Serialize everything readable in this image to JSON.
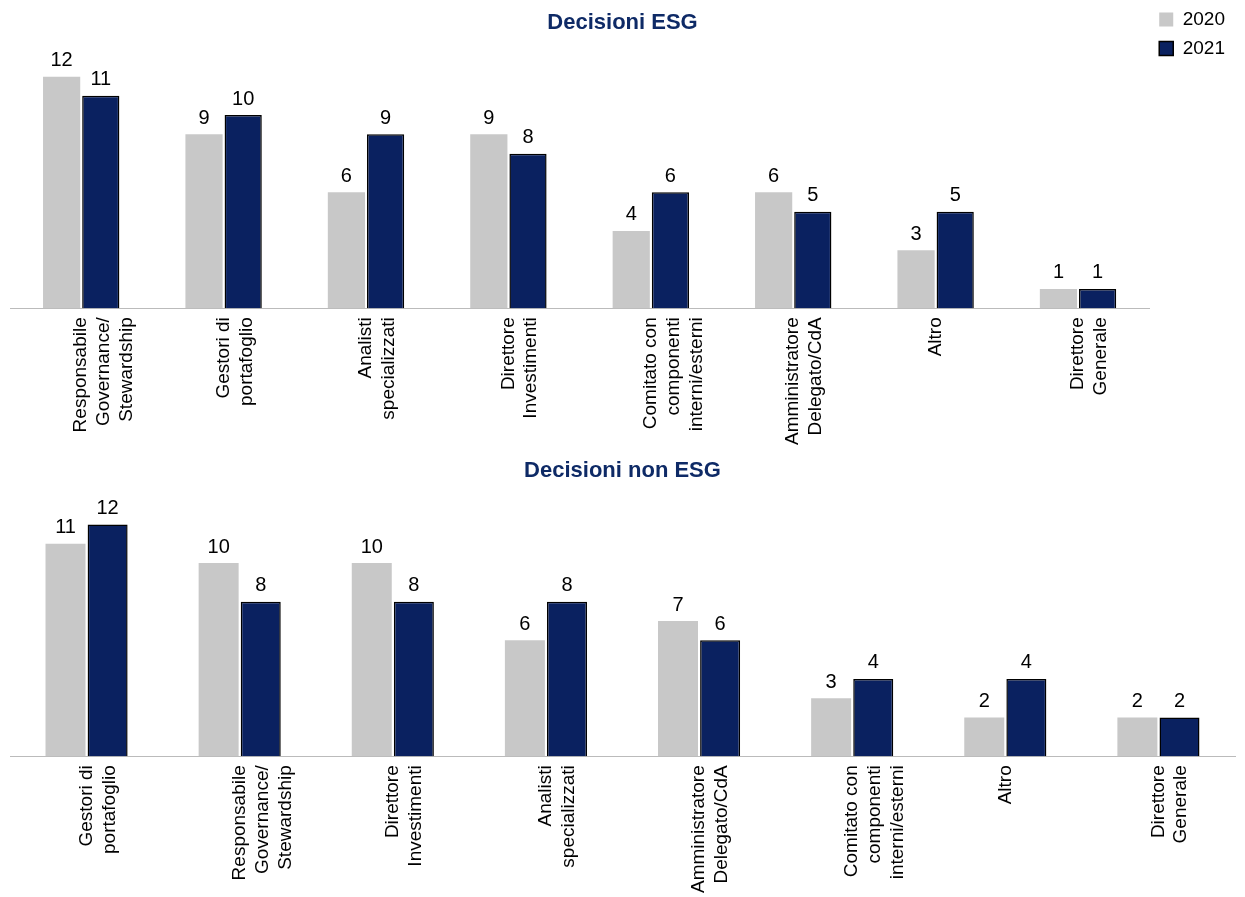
{
  "chart_data": [
    {
      "type": "bar",
      "title": "Decisioni ESG",
      "categories": [
        "Responsabile Governance/ Stewardship",
        "Gestori di portafoglio",
        "Analisti specializzati",
        "Direttore Investimenti",
        "Comitato con componenti interni/esterni",
        "Amministratore Delegato/CdA",
        "Altro",
        "Direttore Generale"
      ],
      "series": [
        {
          "name": "2020",
          "color": "#c8c8c8",
          "values": [
            12,
            9,
            6,
            9,
            4,
            6,
            3,
            1
          ]
        },
        {
          "name": "2021",
          "color": "#0a2160",
          "values": [
            11,
            10,
            9,
            8,
            6,
            5,
            5,
            1
          ]
        }
      ],
      "data_labels": true,
      "legend": "top right",
      "grid": false
    },
    {
      "type": "bar",
      "title": "Decisioni non ESG",
      "categories": [
        "Gestori di portafoglio",
        "Responsabile Governance/ Stewardship",
        "Direttore Investimenti",
        "Analisti specializzati",
        "Amministratore Delegato/CdA",
        "Comitato con componenti interni/esterni",
        "Altro",
        "Direttore Generale"
      ],
      "series": [
        {
          "name": "2020",
          "color": "#c8c8c8",
          "values": [
            11,
            10,
            10,
            6,
            7,
            3,
            2,
            2
          ]
        },
        {
          "name": "2021",
          "color": "#0a2160",
          "values": [
            12,
            8,
            8,
            8,
            6,
            4,
            4,
            2
          ]
        }
      ],
      "data_labels": true,
      "legend": false,
      "grid": false
    }
  ]
}
